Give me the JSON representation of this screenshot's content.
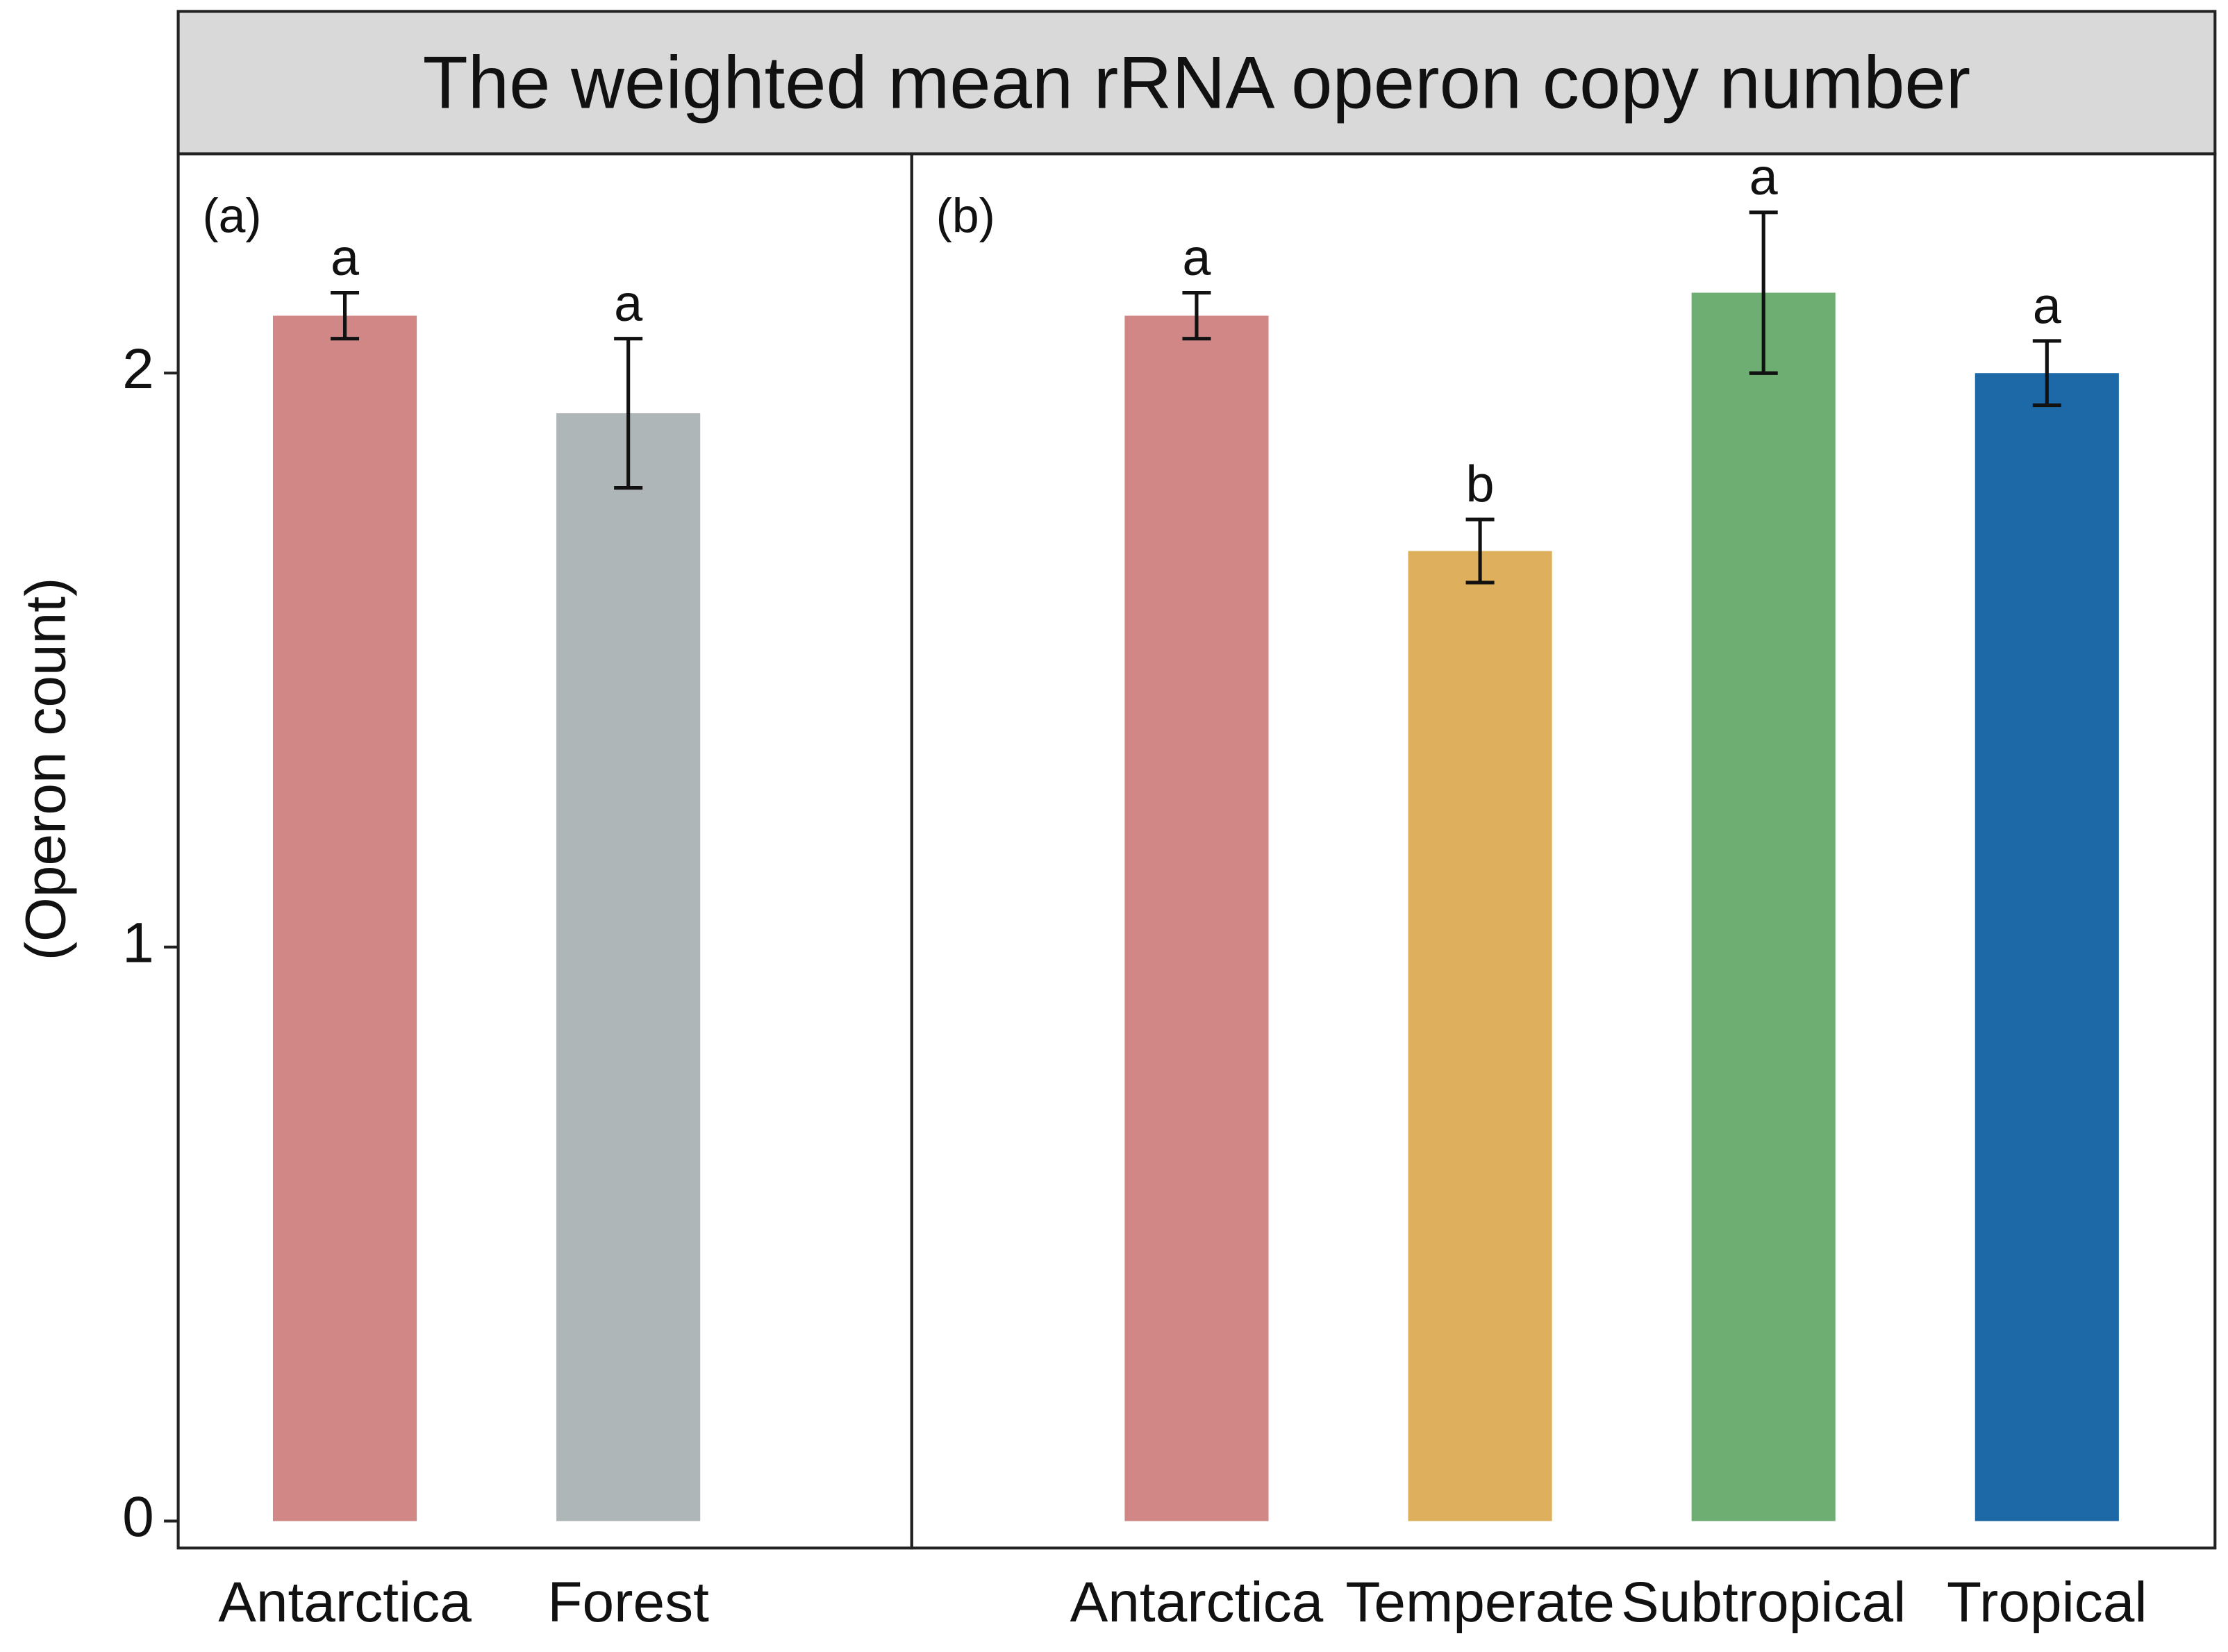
{
  "chart_data": {
    "type": "bar",
    "title": "The weighted mean rRNA operon copy number",
    "y_label": "(Operon count)",
    "ylim": [
      -0.047,
      2.382
    ],
    "yticks": [
      0,
      1,
      2
    ],
    "panels": [
      {
        "label": "(a)",
        "categories": [
          "Antarctica",
          "Forest"
        ],
        "values": [
          2.1,
          1.93
        ],
        "errors": [
          0.04,
          0.13
        ],
        "letters": [
          "a",
          "a"
        ],
        "colors": [
          "#d08785",
          "#afb6b7"
        ]
      },
      {
        "label": "(b)",
        "categories": [
          "Antarctica",
          "Temperate",
          "Subtropical",
          "Tropical"
        ],
        "values": [
          2.1,
          1.69,
          2.14,
          2.0
        ],
        "errors": [
          0.04,
          0.055,
          0.14,
          0.056
        ],
        "letters": [
          "a",
          "b",
          "a",
          "a"
        ],
        "colors": [
          "#d08785",
          "#deaf5c",
          "#6fae72",
          "#1d68a7"
        ]
      }
    ]
  }
}
